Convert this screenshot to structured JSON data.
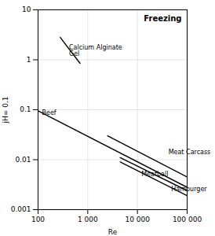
{
  "chart_data": {
    "type": "line",
    "xlabel": "Re",
    "ylabel": "jH= 0.1",
    "log": true,
    "grid": true,
    "color": "black",
    "xlim": [
      100,
      100000
    ],
    "ylim": [
      0.001,
      10
    ],
    "xticks": [
      100,
      {
        "value": 1000,
        "label": "1 000"
      },
      {
        "value": 10000,
        "label": "10 000"
      },
      {
        "value": 100000,
        "label": "100 000"
      }
    ],
    "yticks": [
      0.001,
      0.01,
      0.1,
      1,
      10
    ],
    "series": [
      {
        "name": "Calcium Alginate\nGel",
        "x": [
          280,
          700
        ],
        "values": [
          2.8,
          0.85
        ]
      },
      {
        "name": "Beef",
        "x": [
          100,
          100000
        ],
        "values": [
          0.095,
          0.0028
        ]
      },
      {
        "name": "Meat Carcass",
        "x": [
          2500,
          100000
        ],
        "values": [
          0.03,
          0.0045
        ]
      },
      {
        "name": "Meatball",
        "x": [
          4500,
          100000
        ],
        "values": [
          0.011,
          0.0024
        ]
      },
      {
        "name": "Hamburger",
        "x": [
          4500,
          100000
        ],
        "values": [
          0.009,
          0.0019
        ]
      }
    ],
    "annotations": [
      {
        "text": "Calcium Alginate\nGel",
        "x": 420,
        "y": 1.5
      },
      {
        "text": "Beef",
        "x": 120,
        "y": 0.088
      },
      {
        "text": "Meat Carcass",
        "x": 42000,
        "y": 0.014
      },
      {
        "text": "Meatball",
        "x": 12000,
        "y": 0.0052
      },
      {
        "text": "Hamburger",
        "x": 48000,
        "y": 0.0026
      },
      {
        "text": "Freezing"
      }
    ]
  }
}
